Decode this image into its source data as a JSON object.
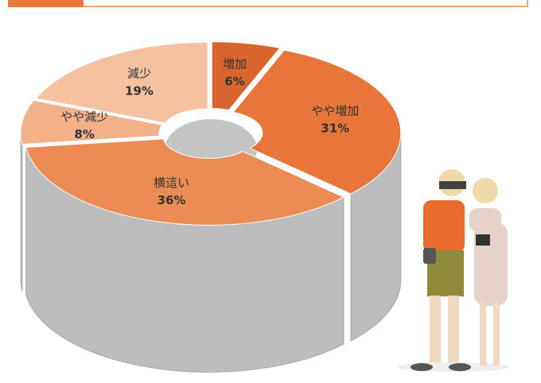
{
  "chart_data": {
    "type": "pie",
    "categories": [
      "増加",
      "やや増加",
      "横這い",
      "やや減少",
      "減少"
    ],
    "values": [
      6,
      31,
      36,
      8,
      19
    ],
    "value_labels": [
      "6%",
      "31%",
      "36%",
      "8%",
      "19%"
    ],
    "colors": [
      "#d8652c",
      "#e8763a",
      "#ec8c55",
      "#f2b189",
      "#f4c2a1"
    ],
    "label_colors": [
      "#ffffff",
      "#ffffff",
      "#333333",
      "#333333",
      "#333333"
    ]
  }
}
